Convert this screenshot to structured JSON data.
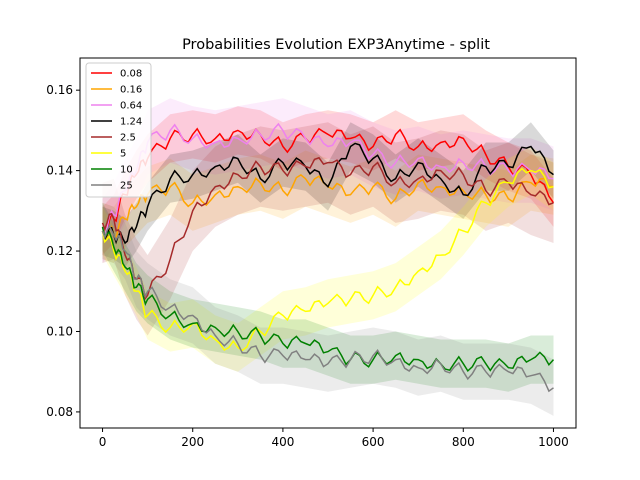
{
  "chart_data": {
    "type": "line",
    "title": "Probabilities Evolution EXP3Anytime  - split",
    "xlabel": "",
    "ylabel": "",
    "xlim": [
      -50,
      1050
    ],
    "ylim": [
      0.076,
      0.168
    ],
    "xticks": [
      0,
      200,
      400,
      600,
      800,
      1000
    ],
    "xtick_labels": [
      "0",
      "200",
      "400",
      "600",
      "800",
      "1000"
    ],
    "yticks": [
      0.08,
      0.1,
      0.12,
      0.14,
      0.16
    ],
    "ytick_labels": [
      "0.08",
      "0.10",
      "0.12",
      "0.14",
      "0.16"
    ],
    "grid": false,
    "legend_position": "top-left",
    "x": [
      0,
      25,
      50,
      75,
      100,
      150,
      200,
      250,
      300,
      350,
      400,
      450,
      500,
      550,
      600,
      650,
      700,
      750,
      800,
      850,
      900,
      950,
      1000
    ],
    "series": [
      {
        "name": "0.08",
        "color": "#ff0000",
        "values": [
          0.125,
          0.128,
          0.134,
          0.139,
          0.143,
          0.148,
          0.149,
          0.148,
          0.15,
          0.149,
          0.146,
          0.148,
          0.149,
          0.148,
          0.146,
          0.149,
          0.146,
          0.147,
          0.148,
          0.144,
          0.141,
          0.139,
          0.132
        ],
        "band": 0.006
      },
      {
        "name": "0.16",
        "color": "#ffa500",
        "values": [
          0.125,
          0.124,
          0.128,
          0.131,
          0.134,
          0.136,
          0.132,
          0.134,
          0.136,
          0.137,
          0.135,
          0.138,
          0.136,
          0.134,
          0.136,
          0.133,
          0.137,
          0.136,
          0.135,
          0.134,
          0.133,
          0.137,
          0.136
        ],
        "band": 0.007
      },
      {
        "name": "0.64",
        "color": "#ee82ee",
        "values": [
          0.125,
          0.129,
          0.135,
          0.14,
          0.147,
          0.15,
          0.148,
          0.147,
          0.148,
          0.149,
          0.15,
          0.148,
          0.146,
          0.147,
          0.144,
          0.142,
          0.143,
          0.141,
          0.142,
          0.141,
          0.14,
          0.14,
          0.138
        ],
        "band": 0.008
      },
      {
        "name": "1.24",
        "color": "#000000",
        "values": [
          0.125,
          0.124,
          0.122,
          0.126,
          0.131,
          0.138,
          0.139,
          0.141,
          0.143,
          0.138,
          0.142,
          0.141,
          0.136,
          0.146,
          0.143,
          0.138,
          0.142,
          0.138,
          0.134,
          0.141,
          0.141,
          0.146,
          0.139
        ],
        "band": 0.006
      },
      {
        "name": "2.5",
        "color": "#a52a2a",
        "values": [
          0.127,
          0.128,
          0.119,
          0.113,
          0.109,
          0.118,
          0.13,
          0.136,
          0.139,
          0.141,
          0.14,
          0.141,
          0.142,
          0.139,
          0.141,
          0.137,
          0.138,
          0.14,
          0.139,
          0.135,
          0.137,
          0.134,
          0.132
        ],
        "band": 0.01
      },
      {
        "name": "5",
        "color": "#ffff00",
        "values": [
          0.125,
          0.12,
          0.115,
          0.11,
          0.104,
          0.101,
          0.102,
          0.098,
          0.096,
          0.1,
          0.104,
          0.105,
          0.107,
          0.108,
          0.109,
          0.111,
          0.115,
          0.119,
          0.125,
          0.132,
          0.137,
          0.14,
          0.136
        ],
        "band": 0.006
      },
      {
        "name": "10",
        "color": "#008000",
        "values": [
          0.126,
          0.121,
          0.116,
          0.111,
          0.108,
          0.104,
          0.102,
          0.101,
          0.1,
          0.099,
          0.097,
          0.097,
          0.095,
          0.093,
          0.093,
          0.094,
          0.093,
          0.092,
          0.092,
          0.092,
          0.091,
          0.093,
          0.093
        ],
        "band": 0.006
      },
      {
        "name": "25",
        "color": "#808080",
        "values": [
          0.125,
          0.124,
          0.12,
          0.113,
          0.11,
          0.106,
          0.104,
          0.099,
          0.097,
          0.094,
          0.094,
          0.093,
          0.092,
          0.093,
          0.094,
          0.093,
          0.091,
          0.092,
          0.09,
          0.09,
          0.09,
          0.089,
          0.086
        ],
        "band": 0.007
      }
    ]
  }
}
